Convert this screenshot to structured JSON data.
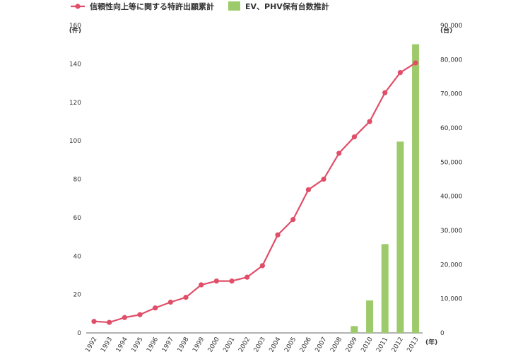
{
  "chart_data": {
    "type": "bar+line",
    "categories": [
      "1992",
      "1993",
      "1994",
      "1995",
      "1996",
      "1997",
      "1998",
      "1999",
      "2000",
      "2001",
      "2002",
      "2003",
      "2004",
      "2005",
      "2006",
      "2007",
      "2008",
      "2009",
      "2010",
      "2011",
      "2012",
      "2013"
    ],
    "series": [
      {
        "name": "信頼性向上等に関する特許出願累計",
        "type": "line",
        "axis": "left",
        "color": "#e04e68",
        "values": [
          6,
          5.5,
          8,
          9.5,
          13,
          16,
          18.5,
          25,
          27,
          27,
          29,
          35,
          51,
          59,
          74.5,
          80,
          93.5,
          102,
          110,
          125,
          135.5,
          140.5
        ]
      },
      {
        "name": "EV、PHV保有台数推計",
        "type": "bar",
        "axis": "right",
        "color": "#9dcb6b",
        "values": [
          0,
          0,
          0,
          0,
          0,
          0,
          0,
          0,
          0,
          0,
          0,
          0,
          0,
          0,
          0,
          0,
          0,
          2000,
          9500,
          26000,
          56000,
          84500
        ]
      }
    ],
    "left_axis": {
      "unit": "(件)",
      "ylim": [
        0,
        160
      ],
      "ticks": [
        0,
        20,
        40,
        60,
        80,
        100,
        120,
        140,
        160
      ]
    },
    "right_axis": {
      "unit": "(台)",
      "ylim": [
        0,
        90000
      ],
      "ticks": [
        "0",
        "10,000",
        "20,000",
        "30,000",
        "40,000",
        "50,000",
        "60,000",
        "70,000",
        "80,000",
        "90,000"
      ]
    },
    "x_unit": "(年)",
    "legend_position": "top-left",
    "grid": false
  }
}
